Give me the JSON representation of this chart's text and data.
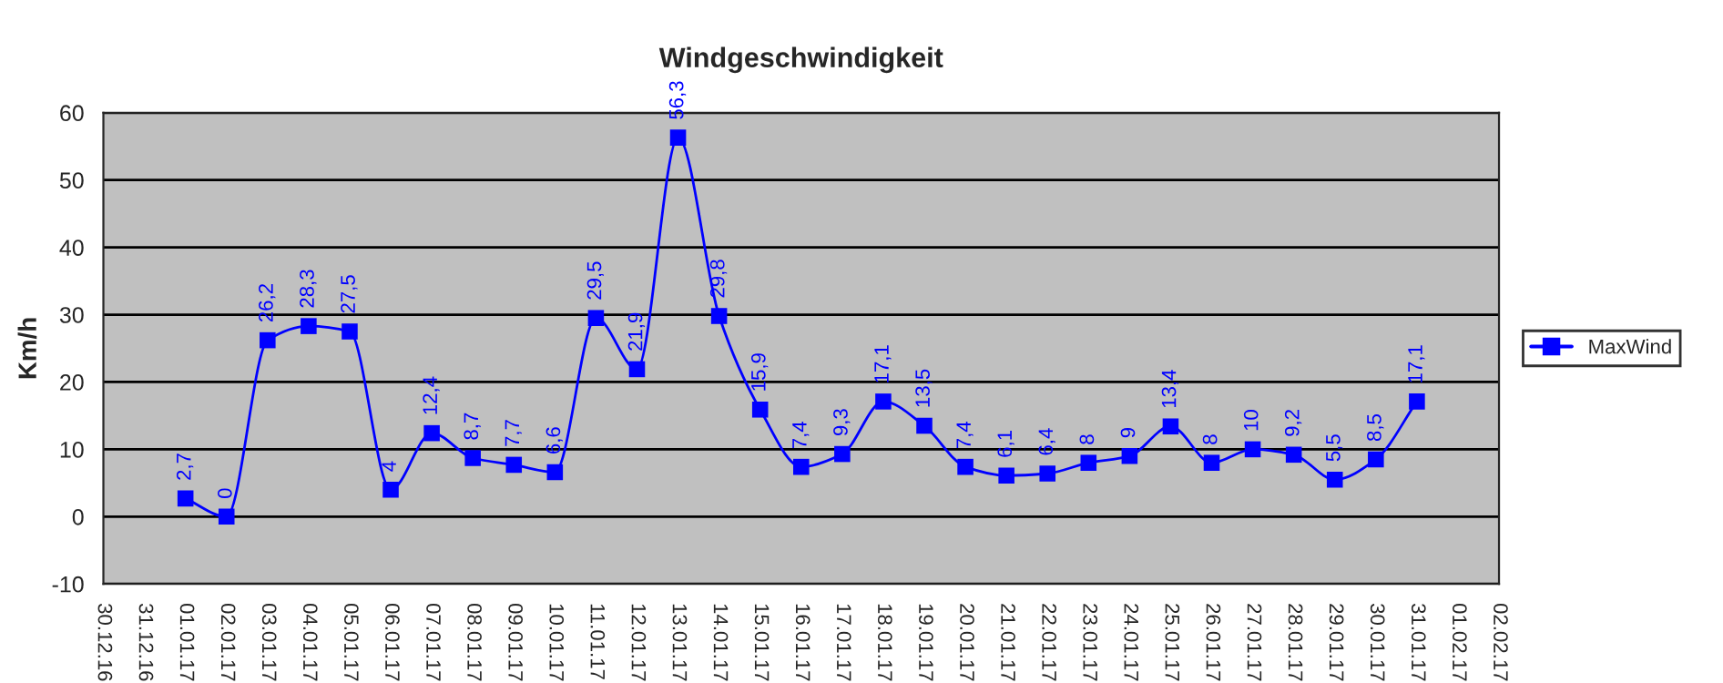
{
  "chart_data": {
    "type": "line",
    "title": "Windgeschwindigkeit",
    "ylabel": "Km/h",
    "categories": [
      "30.12.16",
      "31.12.16",
      "01.01.17",
      "02.01.17",
      "03.01.17",
      "04.01.17",
      "05.01.17",
      "06.01.17",
      "07.01.17",
      "08.01.17",
      "09.01.17",
      "10.01.17",
      "11.01.17",
      "12.01.17",
      "13.01.17",
      "14.01.17",
      "15.01.17",
      "16.01.17",
      "17.01.17",
      "18.01.17",
      "19.01.17",
      "20.01.17",
      "21.01.17",
      "22.01.17",
      "23.01.17",
      "24.01.17",
      "25.01.17",
      "26.01.17",
      "27.01.17",
      "28.01.17",
      "29.01.17",
      "30.01.17",
      "31.01.17",
      "01.02.17",
      "02.02.17"
    ],
    "series": [
      {
        "name": "MaxWind",
        "color": "#0000ff",
        "values": [
          null,
          null,
          2.7,
          0,
          26.2,
          28.3,
          27.5,
          4,
          12.4,
          8.7,
          7.7,
          6.6,
          29.5,
          21.9,
          56.3,
          29.8,
          15.9,
          7.4,
          9.3,
          17.1,
          13.5,
          7.4,
          6.1,
          6.4,
          8,
          9,
          13.4,
          8,
          10,
          9.2,
          5.5,
          8.5,
          17.1,
          null,
          null
        ],
        "value_labels": [
          null,
          null,
          "2,7",
          "0",
          "26,2",
          "28,3",
          "27,5",
          "4",
          "12,4",
          "8,7",
          "7,7",
          "6,6",
          "29,5",
          "21,9",
          "56,3",
          "29,8",
          "15,9",
          "7,4",
          "9,3",
          "17,1",
          "13,5",
          "7,4",
          "6,1",
          "6,4",
          "8",
          "9",
          "13,4",
          "8",
          "10",
          "9,2",
          "5,5",
          "8,5",
          "17,1",
          null,
          null
        ]
      }
    ],
    "ylim": [
      -10,
      60
    ],
    "yticks": [
      -10,
      0,
      10,
      20,
      30,
      40,
      50,
      60
    ],
    "grid": "y",
    "legend": "right",
    "marker": "square",
    "line_style": "solid"
  }
}
